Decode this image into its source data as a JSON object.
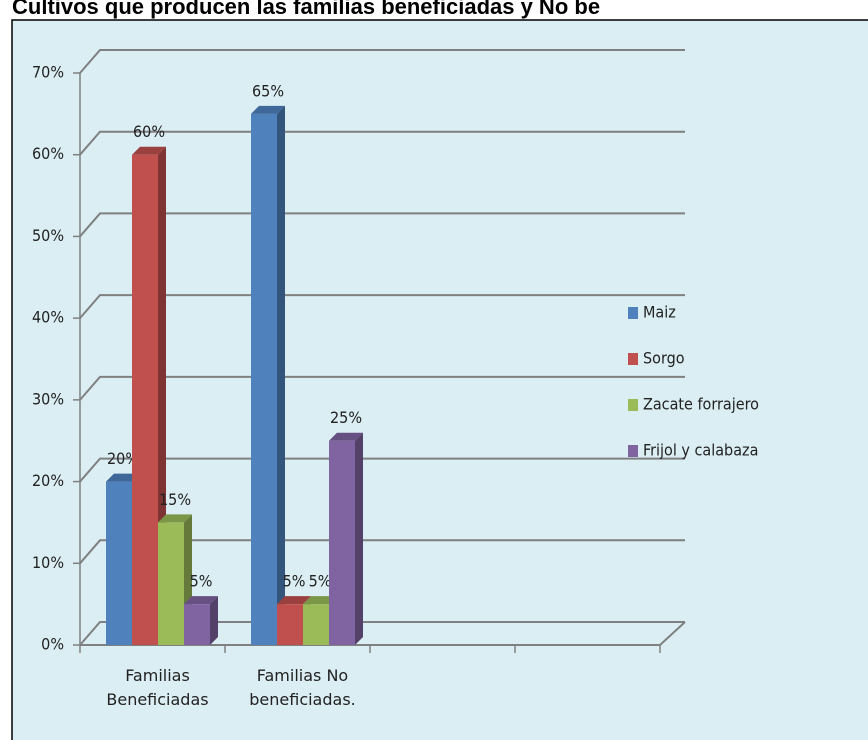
{
  "chart_data": {
    "type": "bar3d",
    "title": "Cultivos que producen las familias beneficiadas y No be",
    "categories": [
      "Familias Beneficiadas",
      "Familias No beneficiadas.",
      null,
      null
    ],
    "series": [
      {
        "name": "Maiz",
        "color": "#4f81bd",
        "values": [
          20,
          65,
          null,
          null
        ],
        "value_labels": [
          "20%",
          "65%",
          null,
          null
        ]
      },
      {
        "name": "Sorgo",
        "color": "#c0504d",
        "values": [
          60,
          5,
          null,
          null
        ],
        "value_labels": [
          "60%",
          "5%",
          null,
          null
        ]
      },
      {
        "name": "Zacate forrajero",
        "color": "#9bbb59",
        "values": [
          15,
          5,
          null,
          null
        ],
        "value_labels": [
          "15%",
          "5%",
          null,
          null
        ]
      },
      {
        "name": "Frijol y calabaza",
        "color": "#8064a2",
        "values": [
          5,
          25,
          null,
          null
        ],
        "value_labels": [
          "5%",
          "25%",
          null,
          null
        ]
      }
    ],
    "ylim": [
      0,
      70
    ],
    "yticks": [
      {
        "value": 0,
        "label": "0%"
      },
      {
        "value": 10,
        "label": "10%"
      },
      {
        "value": 20,
        "label": "20%"
      },
      {
        "value": 30,
        "label": "30%"
      },
      {
        "value": 40,
        "label": "40%"
      },
      {
        "value": 50,
        "label": "50%"
      },
      {
        "value": 60,
        "label": "60%"
      },
      {
        "value": 70,
        "label": "70%"
      }
    ],
    "grid": true,
    "legend": "right"
  }
}
